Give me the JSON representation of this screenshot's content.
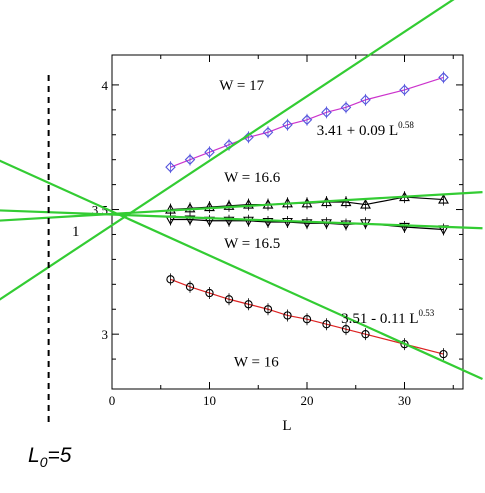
{
  "chart_data": {
    "type": "line",
    "xlabel": "L",
    "ylabel": "",
    "xlim": [
      0,
      36
    ],
    "ylim": [
      2.78,
      4.12
    ],
    "x_ticks": [
      0,
      10,
      20,
      30
    ],
    "y_ticks": [
      3,
      3.5,
      4
    ],
    "x_tick_labels": [
      "0",
      "10",
      "20",
      "30"
    ],
    "y_tick_labels": [
      "3",
      "3.5",
      "4"
    ],
    "grid": false,
    "legend": "none",
    "series": [
      {
        "name": "W = 17",
        "marker": "diamond",
        "color": "#cc33cc",
        "marker_color": "#5555dd",
        "x": [
          6,
          8,
          10,
          12,
          14,
          16,
          18,
          20,
          22,
          24,
          26,
          30,
          34
        ],
        "y": [
          3.67,
          3.7,
          3.73,
          3.76,
          3.79,
          3.81,
          3.84,
          3.86,
          3.89,
          3.91,
          3.94,
          3.98,
          4.03
        ]
      },
      {
        "name": "W = 16.6",
        "marker": "triangle-up",
        "color": "#000000",
        "marker_color": "#000000",
        "x": [
          6,
          8,
          10,
          12,
          14,
          16,
          18,
          20,
          22,
          24,
          26,
          30,
          34
        ],
        "y": [
          3.5,
          3.505,
          3.51,
          3.515,
          3.52,
          3.52,
          3.525,
          3.525,
          3.53,
          3.53,
          3.52,
          3.55,
          3.54
        ]
      },
      {
        "name": "W = 16.5",
        "marker": "triangle-down",
        "color": "#000000",
        "marker_color": "#000000",
        "x": [
          6,
          8,
          10,
          12,
          14,
          16,
          18,
          20,
          22,
          24,
          26,
          30,
          34
        ],
        "y": [
          3.46,
          3.46,
          3.455,
          3.455,
          3.455,
          3.45,
          3.45,
          3.445,
          3.445,
          3.44,
          3.445,
          3.43,
          3.42
        ]
      },
      {
        "name": "W = 16",
        "marker": "circle",
        "color": "#dd2222",
        "marker_color": "#000000",
        "x": [
          6,
          8,
          10,
          12,
          14,
          16,
          18,
          20,
          22,
          24,
          26,
          30,
          34
        ],
        "y": [
          3.22,
          3.19,
          3.165,
          3.14,
          3.12,
          3.1,
          3.075,
          3.06,
          3.04,
          3.02,
          3.0,
          2.96,
          2.92
        ]
      }
    ],
    "fits": [
      {
        "x": [
          -14,
          38
        ],
        "y": [
          3.075,
          4.42
        ]
      },
      {
        "x": [
          -14,
          38
        ],
        "y": [
          3.45,
          3.57
        ]
      },
      {
        "x": [
          -14,
          38
        ],
        "y": [
          3.5,
          3.425
        ]
      },
      {
        "x": [
          -14,
          38
        ],
        "y": [
          3.74,
          2.82
        ]
      }
    ],
    "annotations": [
      {
        "text": "W = 17",
        "x": 11,
        "y": 3.98
      },
      {
        "text": "3.41 + 0.09 L",
        "sup": "0.58",
        "x": 21,
        "y": 3.8
      },
      {
        "text": "W = 16.6",
        "x": 11.5,
        "y": 3.61
      },
      {
        "text": "W = 16.5",
        "x": 11.5,
        "y": 3.345
      },
      {
        "text": "3.51 - 0.11 L",
        "sup": "0.53",
        "x": 23.5,
        "y": 3.045
      },
      {
        "text": "W = 16",
        "x": 12.5,
        "y": 2.87
      }
    ],
    "reference_line": {
      "x": -6.5,
      "label": "L",
      "subscript": "0",
      "value": "=5"
    },
    "crossing_label": "1"
  }
}
